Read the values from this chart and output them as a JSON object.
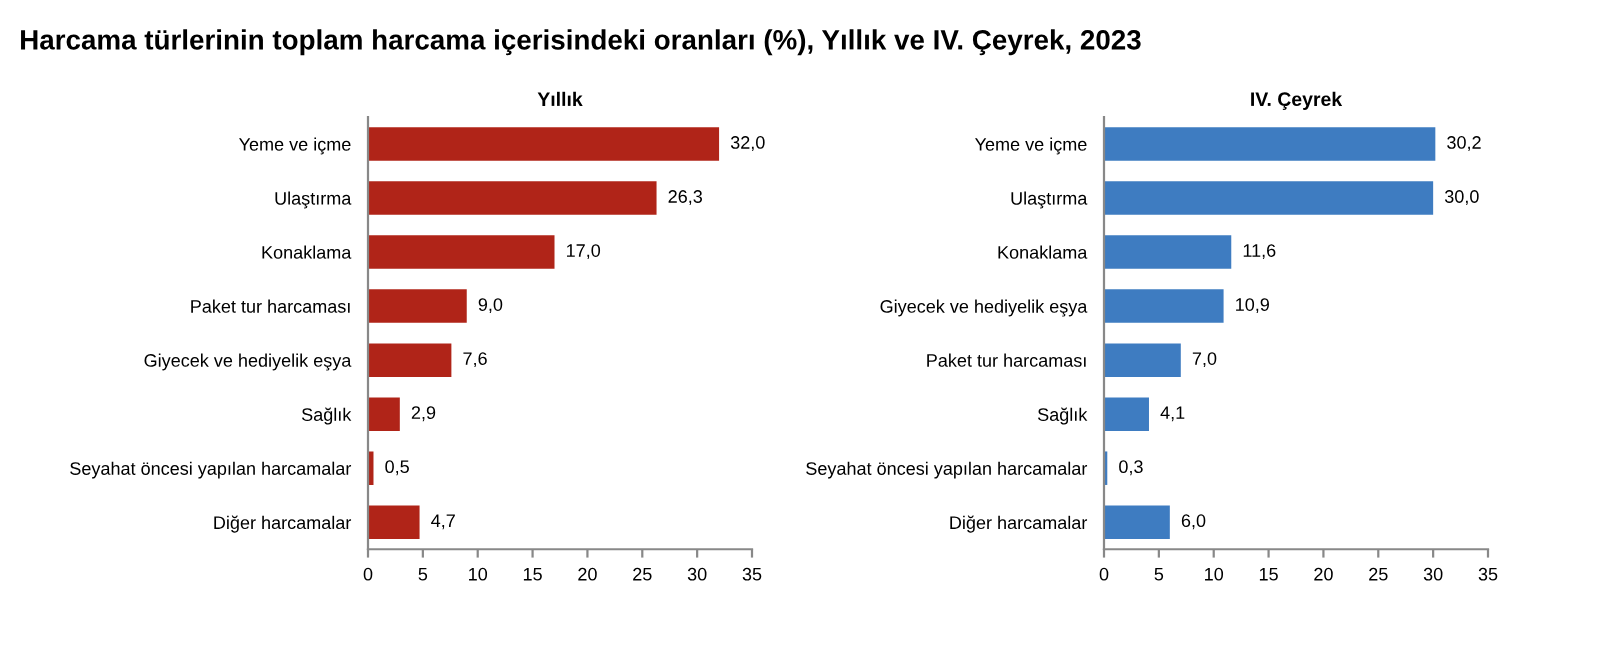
{
  "chart_data": [
    {
      "type": "bar",
      "orientation": "horizontal",
      "title": "Harcama türlerinin toplam harcama içerisindeki oranları (%), Yıllık ve IV. Çeyrek, 2023",
      "subtitle": "Yıllık",
      "categories": [
        "Yeme ve içme",
        "Ulaştırma",
        "Konaklama",
        "Paket tur harcaması",
        "Giyecek ve hediyelik eşya",
        "Sağlık",
        "Seyahat öncesi yapılan harcamalar",
        "Diğer harcamalar"
      ],
      "values": [
        32.0,
        26.3,
        17.0,
        9.0,
        7.6,
        2.9,
        0.5,
        4.7
      ],
      "value_labels": [
        "32,0",
        "26,3",
        "17,0",
        "9,0",
        "7,6",
        "2,9",
        "0,5",
        "4,7"
      ],
      "color": "#b02418",
      "xlim": [
        0,
        35
      ],
      "xticks": [
        0,
        5,
        10,
        15,
        20,
        25,
        30,
        35
      ],
      "grid": false,
      "legend": false
    },
    {
      "type": "bar",
      "orientation": "horizontal",
      "subtitle": "IV. Çeyrek",
      "categories": [
        "Yeme ve içme",
        "Ulaştırma",
        "Konaklama",
        "Giyecek ve hediyelik eşya",
        "Paket tur harcaması",
        "Sağlık",
        "Seyahat öncesi yapılan harcamalar",
        "Diğer harcamalar"
      ],
      "values": [
        30.2,
        30.0,
        11.6,
        10.9,
        7.0,
        4.1,
        0.3,
        6.0
      ],
      "value_labels": [
        "30,2",
        "30,0",
        "11,6",
        "10,9",
        "7,0",
        "4,1",
        "0,3",
        "6,0"
      ],
      "color": "#3e7cc1",
      "xlim": [
        0,
        35
      ],
      "xticks": [
        0,
        5,
        10,
        15,
        20,
        25,
        30,
        35
      ],
      "grid": false,
      "legend": false
    }
  ]
}
